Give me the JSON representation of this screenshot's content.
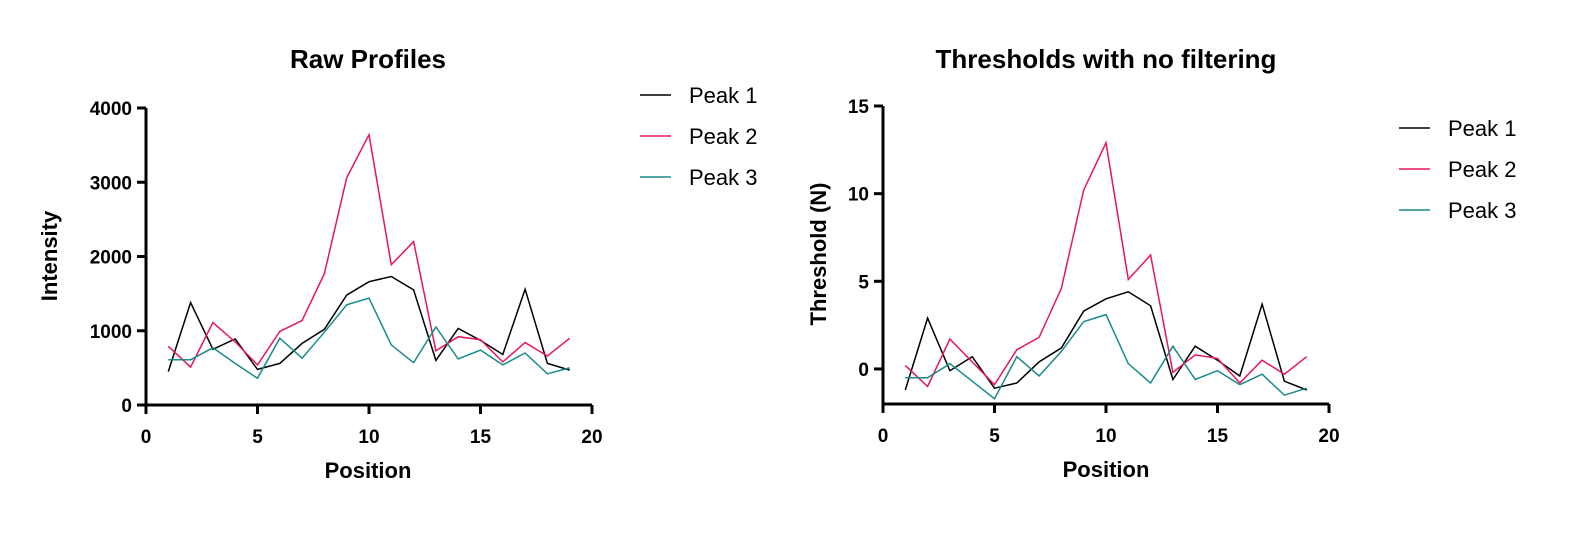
{
  "chart_data": [
    {
      "type": "line",
      "title": "Raw Profiles",
      "xlabel": "Position",
      "ylabel": "Intensity",
      "xlim": [
        0,
        20
      ],
      "ylim": [
        0,
        4000
      ],
      "xticks": [
        0,
        5,
        10,
        15,
        20
      ],
      "yticks": [
        0,
        1000,
        2000,
        3000,
        4000
      ],
      "grid": false,
      "legend": "right",
      "x": [
        1,
        2,
        3,
        4,
        5,
        6,
        7,
        8,
        9,
        10,
        11,
        12,
        13,
        14,
        15,
        16,
        17,
        18,
        19
      ],
      "series": [
        {
          "name": "Peak 1",
          "color": "#000000",
          "values": [
            450,
            1380,
            750,
            890,
            480,
            560,
            830,
            1020,
            1480,
            1660,
            1730,
            1550,
            600,
            1030,
            870,
            680,
            1560,
            560,
            470
          ]
        },
        {
          "name": "Peak 2",
          "color": "#e8175d",
          "values": [
            790,
            510,
            1110,
            850,
            540,
            990,
            1140,
            1770,
            3060,
            3640,
            1890,
            2200,
            730,
            920,
            880,
            580,
            840,
            660,
            900
          ]
        },
        {
          "name": "Peak 3",
          "color": "#1a8a8a",
          "values": [
            610,
            610,
            770,
            560,
            360,
            900,
            630,
            980,
            1350,
            1440,
            810,
            570,
            1050,
            620,
            740,
            540,
            700,
            420,
            500
          ]
        }
      ]
    },
    {
      "type": "line",
      "title": "Thresholds with no filtering",
      "xlabel": "Position",
      "ylabel": "Threshold (N)",
      "xlim": [
        0,
        20
      ],
      "ylim": [
        -2,
        15
      ],
      "xticks": [
        0,
        5,
        10,
        15,
        20
      ],
      "yticks": [
        0,
        5,
        10,
        15
      ],
      "grid": false,
      "legend": "right",
      "x": [
        1,
        2,
        3,
        4,
        5,
        6,
        7,
        8,
        9,
        10,
        11,
        12,
        13,
        14,
        15,
        16,
        17,
        18,
        19
      ],
      "series": [
        {
          "name": "Peak 1",
          "color": "#000000",
          "values": [
            -1.2,
            2.9,
            -0.1,
            0.7,
            -1.1,
            -0.8,
            0.4,
            1.2,
            3.3,
            4.0,
            4.4,
            3.6,
            -0.6,
            1.3,
            0.5,
            -0.4,
            3.7,
            -0.7,
            -1.2
          ]
        },
        {
          "name": "Peak 2",
          "color": "#e8175d",
          "values": [
            0.2,
            -1.0,
            1.7,
            0.4,
            -0.9,
            1.1,
            1.8,
            4.6,
            10.2,
            12.9,
            5.1,
            6.5,
            -0.2,
            0.8,
            0.6,
            -0.8,
            0.5,
            -0.3,
            0.7
          ]
        },
        {
          "name": "Peak 3",
          "color": "#1a8a8a",
          "values": [
            -0.5,
            -0.5,
            0.3,
            -0.7,
            -1.7,
            0.7,
            -0.4,
            1.0,
            2.7,
            3.1,
            0.3,
            -0.8,
            1.3,
            -0.6,
            -0.1,
            -0.9,
            -0.3,
            -1.5,
            -1.1
          ]
        }
      ]
    }
  ]
}
